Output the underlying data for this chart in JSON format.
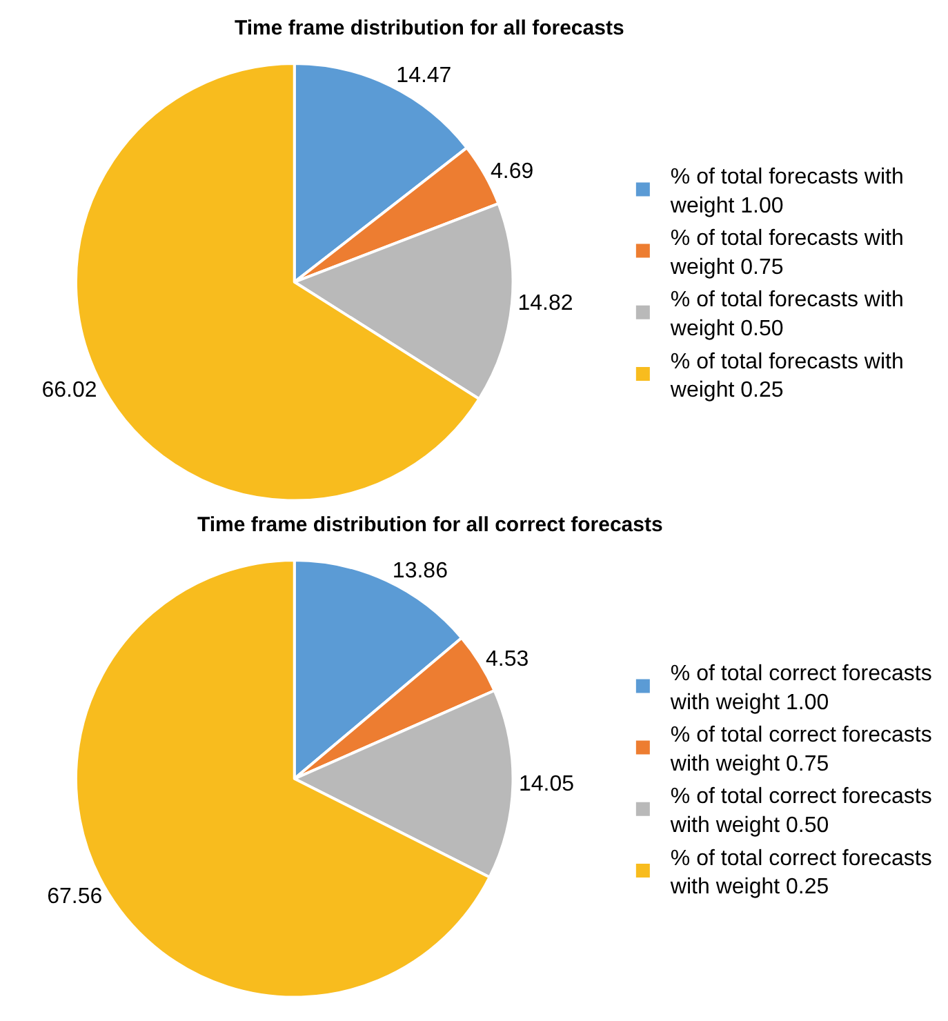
{
  "chart_data": [
    {
      "type": "pie",
      "title": "Time frame distribution for all forecasts",
      "categories": [
        "% of total forecasts with weight 1.00",
        "% of total forecasts with weight 0.75",
        "% of total forecasts with weight 0.50",
        "% of total forecasts with weight 0.25"
      ],
      "values": [
        14.47,
        4.69,
        14.82,
        66.02
      ],
      "colors": [
        "#5b9bd5",
        "#ed7d31",
        "#b9b9b9",
        "#f8bc1e"
      ],
      "data_labels": true,
      "legend": "right"
    },
    {
      "type": "pie",
      "title": "Time frame distribution for all correct forecasts",
      "categories": [
        "% of total correct forecasts with weight 1.00",
        "% of total correct forecasts with weight 0.75",
        "% of total correct forecasts with weight 0.50",
        "% of total correct forecasts with weight 0.25"
      ],
      "values": [
        13.86,
        4.53,
        14.05,
        67.56
      ],
      "colors": [
        "#5b9bd5",
        "#ed7d31",
        "#b9b9b9",
        "#f8bc1e"
      ],
      "data_labels": true,
      "legend": "right"
    }
  ]
}
